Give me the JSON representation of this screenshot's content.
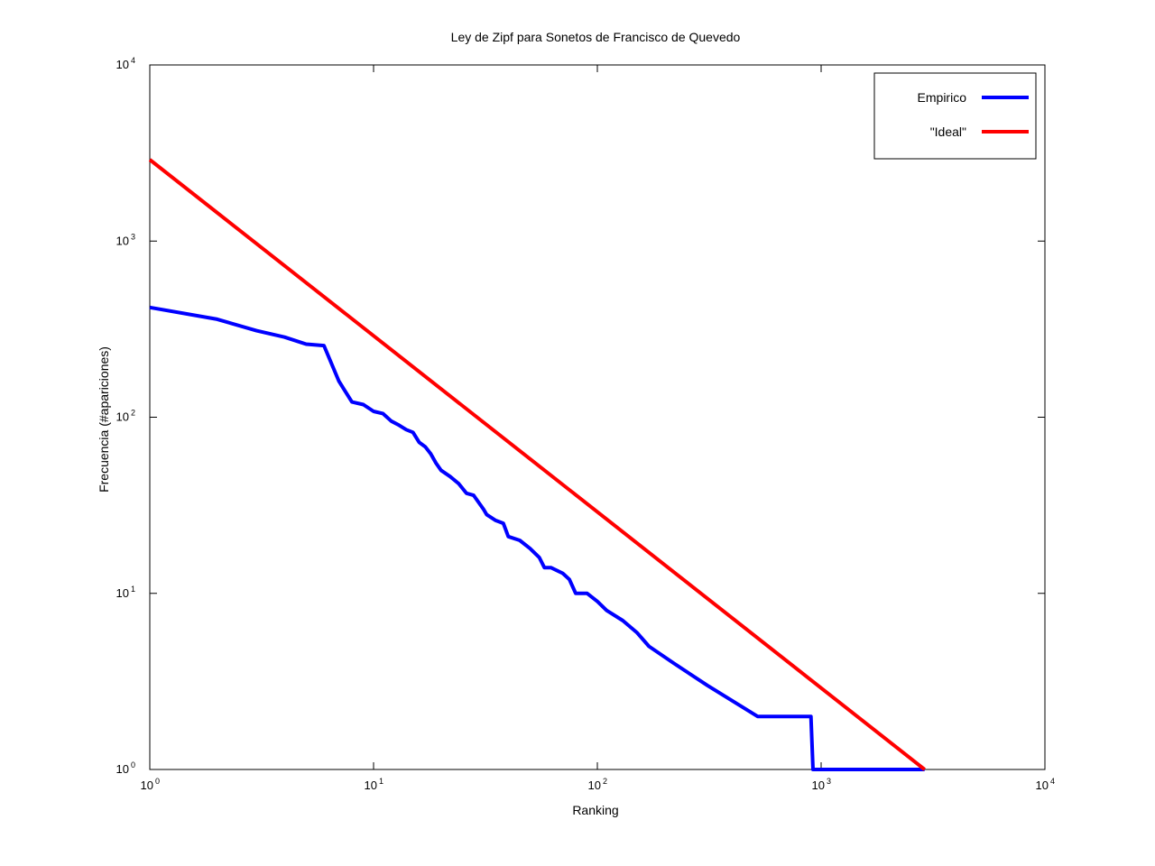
{
  "chart_data": {
    "type": "line",
    "title": "Ley de Zipf para Sonetos de Francisco de Quevedo",
    "xlabel": "Ranking",
    "ylabel": "Frecuencia (#apariciones)",
    "xscale": "log",
    "yscale": "log",
    "xlim": [
      1,
      10000
    ],
    "ylim": [
      1,
      10000
    ],
    "x_ticks": [
      {
        "base": "10",
        "exp": "0",
        "value": 1
      },
      {
        "base": "10",
        "exp": "1",
        "value": 10
      },
      {
        "base": "10",
        "exp": "2",
        "value": 100
      },
      {
        "base": "10",
        "exp": "3",
        "value": 1000
      },
      {
        "base": "10",
        "exp": "4",
        "value": 10000
      }
    ],
    "y_ticks": [
      {
        "base": "10",
        "exp": "0",
        "value": 1
      },
      {
        "base": "10",
        "exp": "1",
        "value": 10
      },
      {
        "base": "10",
        "exp": "2",
        "value": 100
      },
      {
        "base": "10",
        "exp": "3",
        "value": 1000
      },
      {
        "base": "10",
        "exp": "4",
        "value": 10000
      }
    ],
    "grid": false,
    "legend_position": "top-right",
    "series": [
      {
        "name": "Empirico",
        "color": "#0000ff",
        "x": [
          1,
          2,
          3,
          4,
          5,
          6,
          7,
          8,
          9,
          10,
          11,
          12,
          13,
          14,
          15,
          16,
          17,
          18,
          19,
          20,
          22,
          24,
          26,
          28,
          31,
          32,
          35,
          38,
          40,
          45,
          50,
          55,
          58,
          62,
          70,
          75,
          80,
          90,
          100,
          110,
          130,
          150,
          170,
          220,
          310,
          520,
          900,
          920,
          2900
        ],
        "y": [
          420,
          360,
          310,
          285,
          260,
          255,
          160,
          122,
          118,
          108,
          105,
          95,
          90,
          85,
          82,
          72,
          68,
          62,
          55,
          50,
          46,
          42,
          37,
          36,
          30,
          28,
          26,
          25,
          21,
          20,
          18,
          16,
          14,
          14,
          13,
          12,
          10,
          10,
          9,
          8,
          7,
          6,
          5,
          4,
          3,
          2,
          2,
          1,
          1
        ]
      },
      {
        "name": "\"Ideal\"",
        "color": "#ff0000",
        "x": [
          1,
          2900
        ],
        "y": [
          2900,
          1
        ]
      }
    ]
  }
}
